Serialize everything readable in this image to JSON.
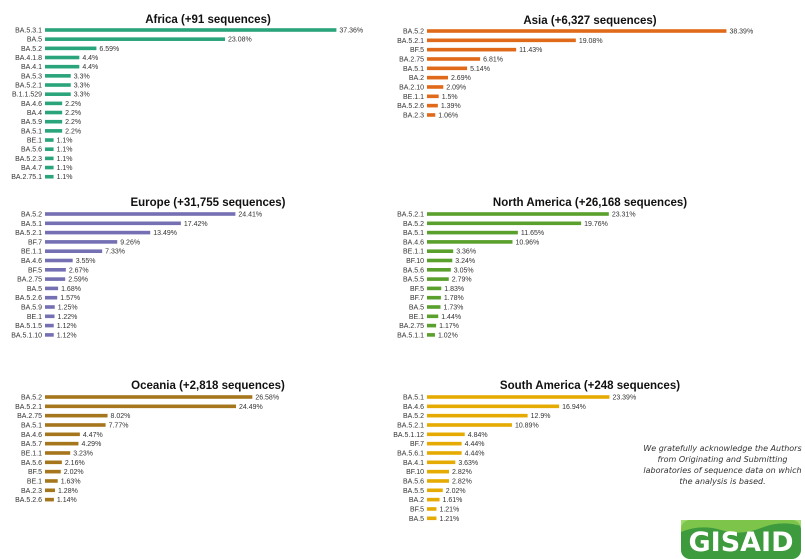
{
  "acknowledgement": "We gratefully acknowledge the Authors from Originating and Submitting laboratories of sequence data on which the analysis is based.",
  "logo_text": "GISAID",
  "chart_data": [
    {
      "type": "bar",
      "title": "Africa (+91 sequences)",
      "color": "#2aa57b",
      "categories": [
        "BA.5.3.1",
        "BA.5",
        "BA.5.2",
        "BA.4.1.8",
        "BA.4.1",
        "BA.5.3",
        "BA.5.2.1",
        "B.1.1.529",
        "BA.4.6",
        "BA.4",
        "BA.5.9",
        "BA.5.1",
        "BE.1",
        "BA.5.6",
        "BA.5.2.3",
        "BA.4.7",
        "BA.2.75.1"
      ],
      "values": [
        37.36,
        23.08,
        6.59,
        4.4,
        4.4,
        3.3,
        3.3,
        3.3,
        2.2,
        2.2,
        2.2,
        2.2,
        1.1,
        1.1,
        1.1,
        1.1,
        1.1
      ],
      "labels": [
        "37.36%",
        "23.08%",
        "6.59%",
        "4.4%",
        "4.4%",
        "3.3%",
        "3.3%",
        "3.3%",
        "2.2%",
        "2.2%",
        "2.2%",
        "2.2%",
        "1.1%",
        "1.1%",
        "1.1%",
        "1.1%",
        "1.1%"
      ]
    },
    {
      "type": "bar",
      "title": "Asia (+6,327 sequences)",
      "color": "#e06a1a",
      "categories": [
        "BA.5.2",
        "BA.5.2.1",
        "BF.5",
        "BA.2.75",
        "BA.5.1",
        "BA.2",
        "BA.2.10",
        "BE.1.1",
        "BA.5.2.6",
        "BA.2.3"
      ],
      "values": [
        38.39,
        19.08,
        11.43,
        6.81,
        5.14,
        2.69,
        2.09,
        1.5,
        1.39,
        1.06
      ],
      "labels": [
        "38.39%",
        "19.08%",
        "11.43%",
        "6.81%",
        "5.14%",
        "2.69%",
        "2.09%",
        "1.5%",
        "1.39%",
        "1.06%"
      ]
    },
    {
      "type": "bar",
      "title": "Europe (+31,755 sequences)",
      "color": "#7570b3",
      "categories": [
        "BA.5.2",
        "BA.5.1",
        "BA.5.2.1",
        "BF.7",
        "BE.1.1",
        "BA.4.6",
        "BF.5",
        "BA.2.75",
        "BA.5",
        "BA.5.2.6",
        "BA.5.9",
        "BE.1",
        "BA.5.1.5",
        "BA.5.1.10"
      ],
      "values": [
        24.41,
        17.42,
        13.49,
        9.26,
        7.33,
        3.55,
        2.67,
        2.59,
        1.68,
        1.57,
        1.25,
        1.22,
        1.12,
        1.12
      ],
      "labels": [
        "24.41%",
        "17.42%",
        "13.49%",
        "9.26%",
        "7.33%",
        "3.55%",
        "2.67%",
        "2.59%",
        "1.68%",
        "1.57%",
        "1.25%",
        "1.22%",
        "1.12%",
        "1.12%"
      ]
    },
    {
      "type": "bar",
      "title": "North America (+26,168 sequences)",
      "color": "#5aa02c",
      "categories": [
        "BA.5.2.1",
        "BA.5.2",
        "BA.5.1",
        "BA.4.6",
        "BE.1.1",
        "BF.10",
        "BA.5.6",
        "BA.5.5",
        "BF.5",
        "BF.7",
        "BA.5",
        "BE.1",
        "BA.2.75",
        "BA.5.1.1"
      ],
      "values": [
        23.31,
        19.76,
        11.65,
        10.96,
        3.36,
        3.24,
        3.05,
        2.79,
        1.83,
        1.78,
        1.73,
        1.44,
        1.17,
        1.02
      ],
      "labels": [
        "23.31%",
        "19.76%",
        "11.65%",
        "10.96%",
        "3.36%",
        "3.24%",
        "3.05%",
        "2.79%",
        "1.83%",
        "1.78%",
        "1.73%",
        "1.44%",
        "1.17%",
        "1.02%"
      ]
    },
    {
      "type": "bar",
      "title": "Oceania (+2,818 sequences)",
      "color": "#a6761d",
      "categories": [
        "BA.5.2",
        "BA.5.2.1",
        "BA.2.75",
        "BA.5.1",
        "BA.4.6",
        "BA.5.7",
        "BE.1.1",
        "BA.5.6",
        "BF.5",
        "BE.1",
        "BA.2.3",
        "BA.5.2.6"
      ],
      "values": [
        26.58,
        24.49,
        8.02,
        7.77,
        4.47,
        4.29,
        3.23,
        2.16,
        2.02,
        1.63,
        1.28,
        1.14
      ],
      "labels": [
        "26.58%",
        "24.49%",
        "8.02%",
        "7.77%",
        "4.47%",
        "4.29%",
        "3.23%",
        "2.16%",
        "2.02%",
        "1.63%",
        "1.28%",
        "1.14%"
      ]
    },
    {
      "type": "bar",
      "title": "South America (+248 sequences)",
      "color": "#e6ab02",
      "categories": [
        "BA.5.1",
        "BA.4.6",
        "BA.5.2",
        "BA.5.2.1",
        "BA.5.1.12",
        "BF.7",
        "BA.5.6.1",
        "BA.4.1",
        "BF.10",
        "BA.5.6",
        "BA.5.5",
        "BA.2",
        "BF.5",
        "BA.5"
      ],
      "values": [
        23.39,
        16.94,
        12.9,
        10.89,
        4.84,
        4.44,
        4.44,
        3.63,
        2.82,
        2.82,
        2.02,
        1.61,
        1.21,
        1.21
      ],
      "labels": [
        "23.39%",
        "16.94%",
        "12.9%",
        "10.89%",
        "4.84%",
        "4.44%",
        "4.44%",
        "3.63%",
        "2.82%",
        "2.82%",
        "2.02%",
        "1.61%",
        "1.21%",
        "1.21%"
      ]
    }
  ]
}
